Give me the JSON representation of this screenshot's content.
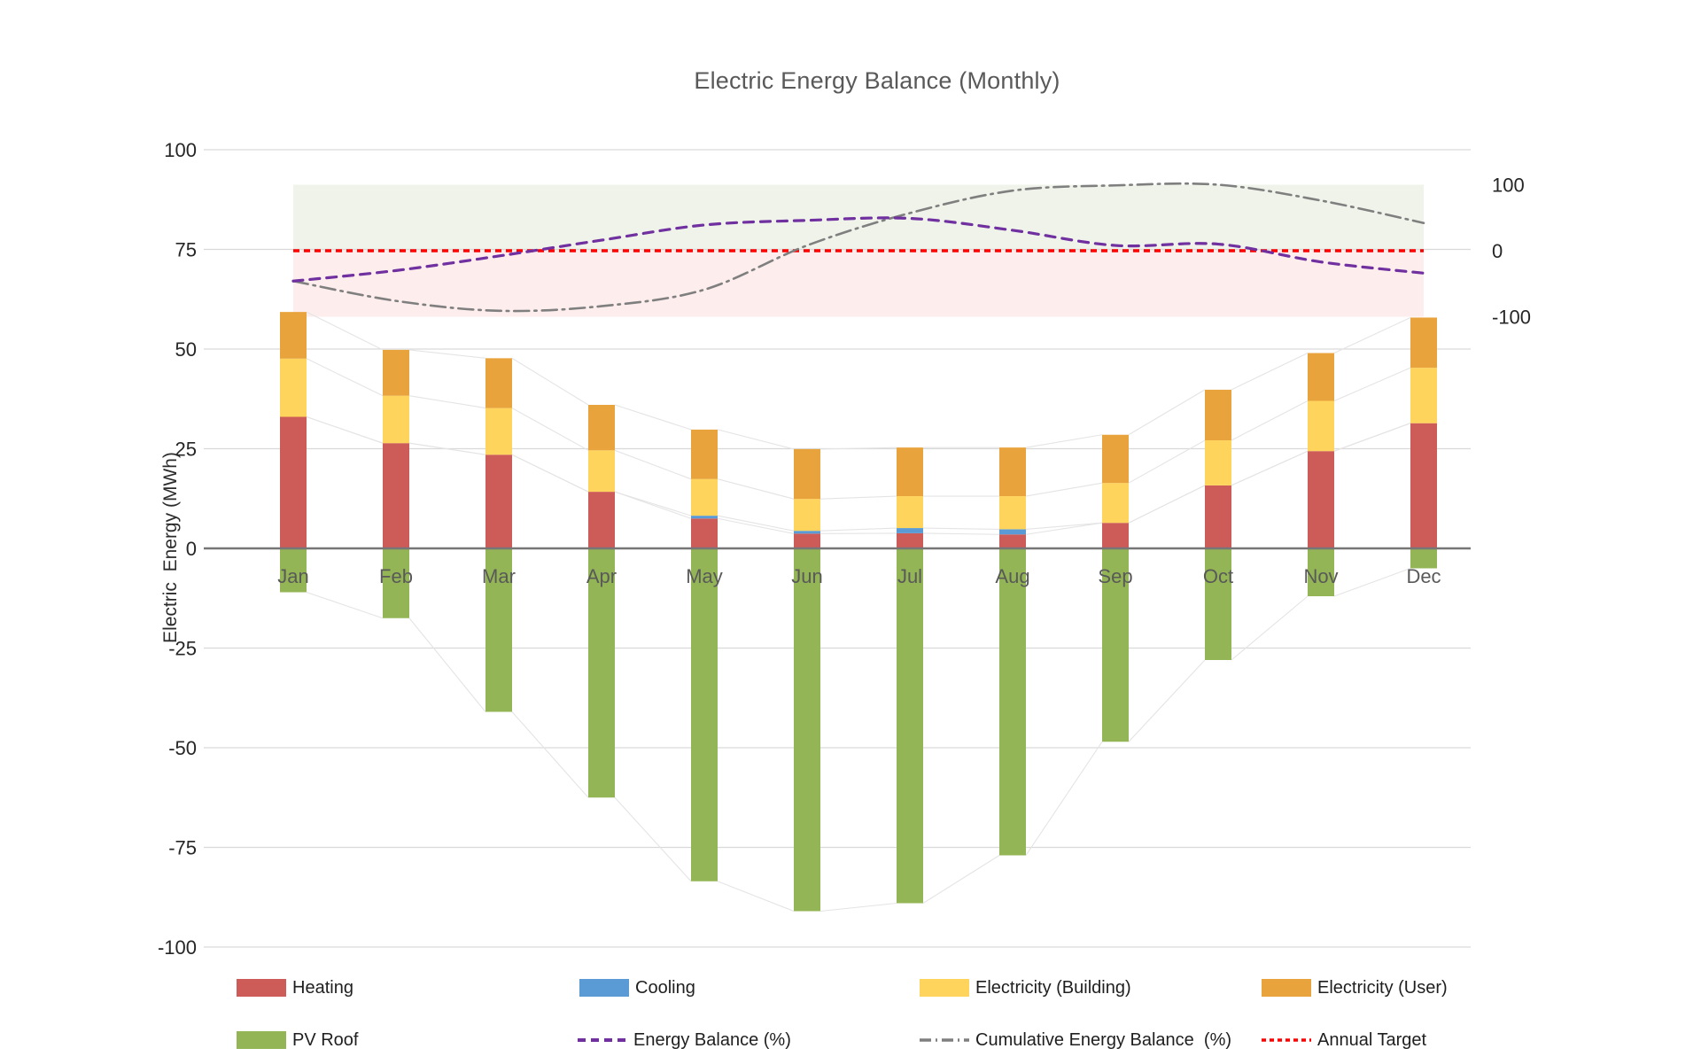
{
  "title": "Electric Energy Balance (Monthly)",
  "chart_data": {
    "type": "bar",
    "subtype": "stacked-bar-with-lines",
    "title": "Electric Energy Balance (Monthly)",
    "categories": [
      "Jan",
      "Feb",
      "Mar",
      "Apr",
      "May",
      "Jun",
      "Jul",
      "Aug",
      "Sep",
      "Oct",
      "Nov",
      "Dec"
    ],
    "left_axis": {
      "label": "Electric  Energy (MWh)",
      "ticks": [
        100,
        75,
        50,
        25,
        0,
        -25,
        -50,
        -75,
        -100
      ],
      "range": [
        -100,
        100
      ],
      "unit": "MWh"
    },
    "right_axis": {
      "ticks": [
        100,
        0,
        -100
      ],
      "range": [
        -100,
        100
      ],
      "unit": "%"
    },
    "grid": true,
    "series": [
      {
        "name": "Heating",
        "type": "bar",
        "color": "#cd5c59",
        "values": [
          33.0,
          26.4,
          23.5,
          14.2,
          7.5,
          3.7,
          3.8,
          3.5,
          6.4,
          15.8,
          24.4,
          31.4
        ]
      },
      {
        "name": "Cooling",
        "type": "bar",
        "color": "#5b9bd5",
        "values": [
          0,
          0,
          0,
          0,
          0.7,
          0.7,
          1.3,
          1.3,
          0,
          0,
          0,
          0
        ]
      },
      {
        "name": "Electricity (Building)",
        "type": "bar",
        "color": "#ffd45c",
        "values": [
          14.6,
          11.9,
          11.7,
          10.4,
          9.2,
          8.0,
          8.0,
          8.3,
          10.0,
          11.3,
          12.6,
          13.9
        ]
      },
      {
        "name": "Electricity (User)",
        "type": "bar",
        "color": "#e8a33c",
        "values": [
          11.7,
          11.5,
          12.5,
          11.4,
          12.4,
          12.5,
          12.2,
          12.2,
          12.1,
          12.7,
          12.0,
          12.6
        ]
      },
      {
        "name": "PV Roof",
        "type": "bar",
        "color": "#94b556",
        "values": [
          -11,
          -17.5,
          -41,
          -62.5,
          -83.5,
          -91,
          -89,
          -77,
          -48.5,
          -28,
          -12,
          -5
        ]
      }
    ],
    "lines": [
      {
        "name": "Energy Balance (%)",
        "axis": "right",
        "style": "dashed",
        "color": "#7030a0",
        "values": [
          -46,
          -30,
          -8,
          16,
          39,
          46,
          49,
          31,
          8,
          10,
          -17,
          -34
        ]
      },
      {
        "name": "Cumulative Energy Balance  (%)",
        "axis": "right",
        "style": "dashdot",
        "color": "#7f7f7f",
        "values": [
          -46,
          -76,
          -91,
          -84,
          -59,
          8,
          57,
          91,
          99,
          100,
          76,
          42
        ]
      },
      {
        "name": "Annual Target",
        "axis": "right",
        "style": "dotted",
        "color": "#ff0000",
        "constant": 0
      }
    ],
    "band": {
      "axis": "right",
      "from": -100,
      "to": 100,
      "split_at": 0,
      "above_color": "#eff3ea",
      "below_color": "#fdeeed"
    },
    "legend_position": "bottom"
  },
  "legend": {
    "items": [
      {
        "label": "Heating",
        "swatch": "rect",
        "color": "#cd5c59"
      },
      {
        "label": "Cooling",
        "swatch": "rect",
        "color": "#5b9bd5"
      },
      {
        "label": "Electricity (Building)",
        "swatch": "rect",
        "color": "#ffd45c"
      },
      {
        "label": "Electricity (User)",
        "swatch": "rect",
        "color": "#e8a33c"
      },
      {
        "label": "PV Roof",
        "swatch": "rect",
        "color": "#94b556"
      },
      {
        "label": "Energy Balance (%)",
        "swatch": "dashed",
        "color": "#7030a0"
      },
      {
        "label": "Cumulative Energy Balance  (%)",
        "swatch": "dashdot",
        "color": "#7f7f7f"
      },
      {
        "label": "Annual Target",
        "swatch": "dotted",
        "color": "#ff0000"
      }
    ]
  }
}
